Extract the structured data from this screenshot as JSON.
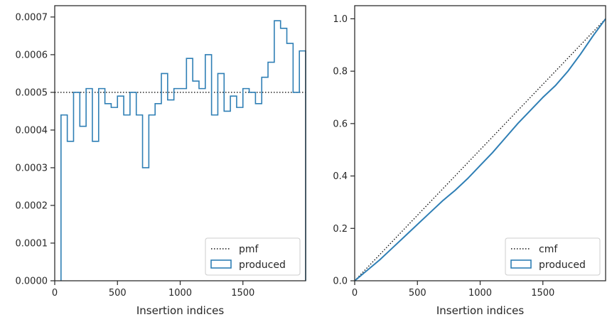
{
  "colors": {
    "series": "#2f7fb5",
    "reference": "#111111",
    "axes": "#262626",
    "background": "#ffffff"
  },
  "chart_data": [
    {
      "type": "step",
      "xlabel": "Insertion indices",
      "ylabel": "",
      "xlim": [
        0,
        2000
      ],
      "ylim": [
        0,
        0.00073
      ],
      "xticks": [
        0,
        500,
        1000,
        1500
      ],
      "xtick_labels": [
        "0",
        "500",
        "1000",
        "1500"
      ],
      "yticks": [
        0,
        0.0001,
        0.0002,
        0.0003,
        0.0004,
        0.0005,
        0.0006,
        0.0007
      ],
      "ytick_labels": [
        "0.0000",
        "0.0001",
        "0.0002",
        "0.0003",
        "0.0004",
        "0.0005",
        "0.0006",
        "0.0007"
      ],
      "grid": false,
      "legend": {
        "position": "lower-right",
        "entries": [
          "pmf",
          "produced"
        ]
      },
      "series": [
        {
          "name": "pmf",
          "style": "dotted",
          "x": [
            0,
            2000
          ],
          "values": [
            0.0005,
            0.0005
          ]
        },
        {
          "name": "produced",
          "style": "step-outline",
          "bin_edges": [
            50,
            100,
            150,
            200,
            250,
            300,
            350,
            400,
            450,
            500,
            550,
            600,
            650,
            700,
            750,
            800,
            850,
            900,
            950,
            1000,
            1050,
            1100,
            1150,
            1200,
            1250,
            1300,
            1350,
            1400,
            1450,
            1500,
            1550,
            1600,
            1650,
            1700,
            1750,
            1800,
            1850,
            1900,
            1950,
            2000
          ],
          "values": [
            0.00044,
            0.00037,
            0.0005,
            0.00041,
            0.00051,
            0.00037,
            0.00051,
            0.00047,
            0.00046,
            0.00049,
            0.00044,
            0.0005,
            0.00044,
            0.0003,
            0.00044,
            0.00047,
            0.00055,
            0.00048,
            0.00051,
            0.00051,
            0.00059,
            0.00053,
            0.00051,
            0.0006,
            0.00044,
            0.00055,
            0.00045,
            0.00049,
            0.00046,
            0.00051,
            0.0005,
            0.00047,
            0.00054,
            0.00058,
            0.00069,
            0.00067,
            0.00063,
            0.0005,
            0.00061
          ]
        }
      ]
    },
    {
      "type": "line",
      "xlabel": "Insertion indices",
      "ylabel": "",
      "xlim": [
        0,
        2000
      ],
      "ylim": [
        0,
        1.05
      ],
      "xticks": [
        0,
        500,
        1000,
        1500
      ],
      "xtick_labels": [
        "0",
        "500",
        "1000",
        "1500"
      ],
      "yticks": [
        0,
        0.2,
        0.4,
        0.6,
        0.8,
        1.0
      ],
      "ytick_labels": [
        "0.0",
        "0.2",
        "0.4",
        "0.6",
        "0.8",
        "1.0"
      ],
      "grid": false,
      "legend": {
        "position": "lower-right",
        "entries": [
          "cmf",
          "produced"
        ]
      },
      "series": [
        {
          "name": "cmf",
          "style": "dotted",
          "x": [
            0,
            2000
          ],
          "values": [
            0,
            1.0
          ]
        },
        {
          "name": "produced",
          "style": "solid",
          "x": [
            0,
            100,
            200,
            300,
            400,
            500,
            600,
            700,
            800,
            900,
            1000,
            1100,
            1200,
            1300,
            1400,
            1500,
            1600,
            1700,
            1800,
            1900,
            2000
          ],
          "values": [
            0,
            0.04,
            0.08,
            0.125,
            0.17,
            0.215,
            0.26,
            0.305,
            0.345,
            0.39,
            0.44,
            0.49,
            0.545,
            0.6,
            0.65,
            0.7,
            0.745,
            0.8,
            0.865,
            0.935,
            1.0
          ]
        }
      ]
    }
  ]
}
